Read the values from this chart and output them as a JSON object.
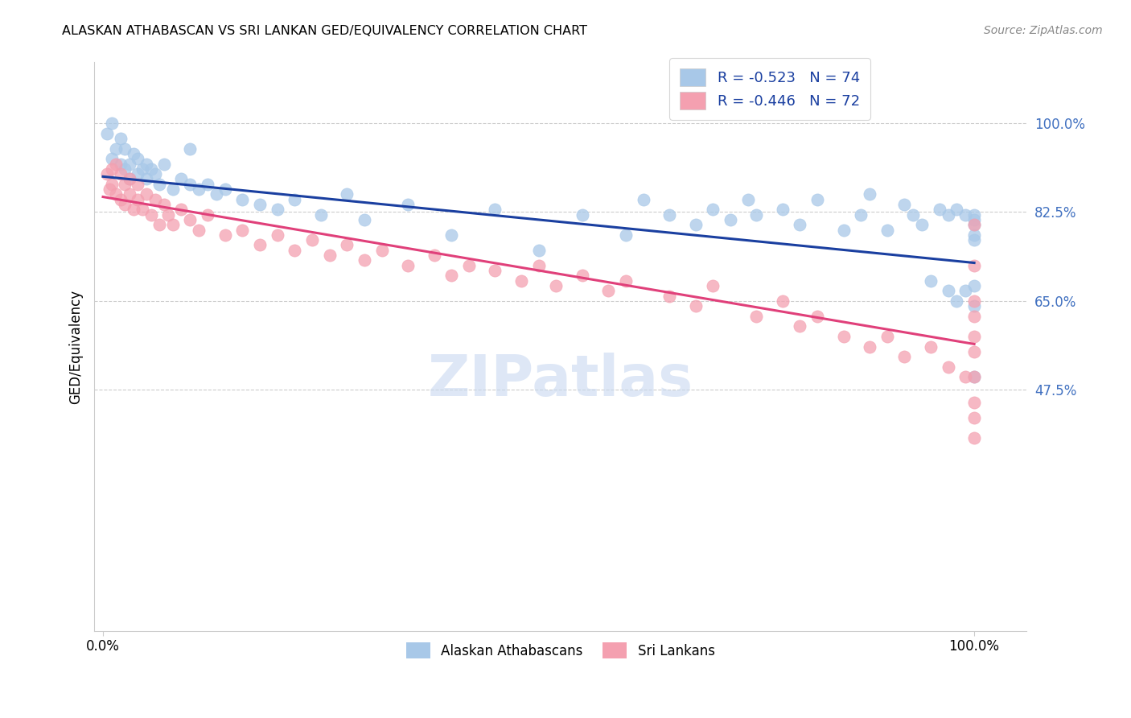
{
  "title": "ALASKAN ATHABASCAN VS SRI LANKAN GED/EQUIVALENCY CORRELATION CHART",
  "source": "Source: ZipAtlas.com",
  "ylabel": "GED/Equivalency",
  "legend_R_blue": "-0.523",
  "legend_N_blue": "74",
  "legend_R_pink": "-0.446",
  "legend_N_pink": "72",
  "legend_label_blue": "Alaskan Athabascans",
  "legend_label_pink": "Sri Lankans",
  "watermark": "ZIPatlas",
  "blue_color": "#a8c8e8",
  "pink_color": "#f4a0b0",
  "trend_blue": "#1a3fa0",
  "trend_pink": "#e0407a",
  "background_color": "#ffffff",
  "grid_color": "#cccccc",
  "ytick_color": "#4070c0",
  "blue_x": [
    0.005,
    0.01,
    0.01,
    0.015,
    0.02,
    0.02,
    0.025,
    0.025,
    0.03,
    0.03,
    0.035,
    0.04,
    0.04,
    0.045,
    0.05,
    0.05,
    0.055,
    0.06,
    0.065,
    0.07,
    0.08,
    0.09,
    0.1,
    0.1,
    0.11,
    0.12,
    0.13,
    0.14,
    0.16,
    0.18,
    0.2,
    0.22,
    0.25,
    0.28,
    0.3,
    0.35,
    0.4,
    0.45,
    0.5,
    0.55,
    0.6,
    0.62,
    0.65,
    0.68,
    0.7,
    0.72,
    0.74,
    0.75,
    0.78,
    0.8,
    0.82,
    0.85,
    0.87,
    0.88,
    0.9,
    0.92,
    0.93,
    0.94,
    0.95,
    0.96,
    0.97,
    0.97,
    0.98,
    0.98,
    0.99,
    0.99,
    1.0,
    1.0,
    1.0,
    1.0,
    1.0,
    1.0,
    1.0,
    1.0
  ],
  "blue_y": [
    0.98,
    0.93,
    1.0,
    0.95,
    0.92,
    0.97,
    0.91,
    0.95,
    0.92,
    0.89,
    0.94,
    0.9,
    0.93,
    0.91,
    0.92,
    0.89,
    0.91,
    0.9,
    0.88,
    0.92,
    0.87,
    0.89,
    0.95,
    0.88,
    0.87,
    0.88,
    0.86,
    0.87,
    0.85,
    0.84,
    0.83,
    0.85,
    0.82,
    0.86,
    0.81,
    0.84,
    0.78,
    0.83,
    0.75,
    0.82,
    0.78,
    0.85,
    0.82,
    0.8,
    0.83,
    0.81,
    0.85,
    0.82,
    0.83,
    0.8,
    0.85,
    0.79,
    0.82,
    0.86,
    0.79,
    0.84,
    0.82,
    0.8,
    0.69,
    0.83,
    0.67,
    0.82,
    0.65,
    0.83,
    0.82,
    0.67,
    0.8,
    0.82,
    0.78,
    0.81,
    0.5,
    0.77,
    0.68,
    0.64
  ],
  "pink_x": [
    0.005,
    0.007,
    0.01,
    0.01,
    0.015,
    0.015,
    0.02,
    0.02,
    0.025,
    0.025,
    0.03,
    0.03,
    0.035,
    0.04,
    0.04,
    0.045,
    0.05,
    0.055,
    0.06,
    0.065,
    0.07,
    0.075,
    0.08,
    0.09,
    0.1,
    0.11,
    0.12,
    0.14,
    0.16,
    0.18,
    0.2,
    0.22,
    0.24,
    0.26,
    0.28,
    0.3,
    0.32,
    0.35,
    0.38,
    0.4,
    0.42,
    0.45,
    0.48,
    0.5,
    0.52,
    0.55,
    0.58,
    0.6,
    0.65,
    0.68,
    0.7,
    0.75,
    0.78,
    0.8,
    0.82,
    0.85,
    0.88,
    0.9,
    0.92,
    0.95,
    0.97,
    0.99,
    1.0,
    1.0,
    1.0,
    1.0,
    1.0,
    1.0,
    1.0,
    1.0,
    1.0,
    1.0
  ],
  "pink_y": [
    0.9,
    0.87,
    0.91,
    0.88,
    0.92,
    0.86,
    0.9,
    0.85,
    0.88,
    0.84,
    0.89,
    0.86,
    0.83,
    0.88,
    0.85,
    0.83,
    0.86,
    0.82,
    0.85,
    0.8,
    0.84,
    0.82,
    0.8,
    0.83,
    0.81,
    0.79,
    0.82,
    0.78,
    0.79,
    0.76,
    0.78,
    0.75,
    0.77,
    0.74,
    0.76,
    0.73,
    0.75,
    0.72,
    0.74,
    0.7,
    0.72,
    0.71,
    0.69,
    0.72,
    0.68,
    0.7,
    0.67,
    0.69,
    0.66,
    0.64,
    0.68,
    0.62,
    0.65,
    0.6,
    0.62,
    0.58,
    0.56,
    0.58,
    0.54,
    0.56,
    0.52,
    0.5,
    0.58,
    0.65,
    0.72,
    0.8,
    0.38,
    0.45,
    0.55,
    0.62,
    0.42,
    0.5
  ]
}
